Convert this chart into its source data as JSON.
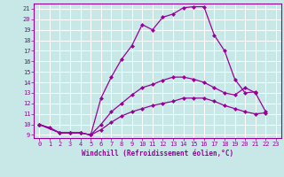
{
  "bg_color": "#c8e8e8",
  "grid_color": "#ffffff",
  "line_color": "#990099",
  "marker": "D",
  "marker_size": 2.0,
  "linewidth": 0.9,
  "xlabel": "Windchill (Refroidissement éolien,°C)",
  "xlim": [
    -0.5,
    23.5
  ],
  "ylim": [
    8.7,
    21.5
  ],
  "yticks": [
    9,
    10,
    11,
    12,
    13,
    14,
    15,
    16,
    17,
    18,
    19,
    20,
    21
  ],
  "xticks": [
    0,
    1,
    2,
    3,
    4,
    5,
    6,
    7,
    8,
    9,
    10,
    11,
    12,
    13,
    14,
    15,
    16,
    17,
    18,
    19,
    20,
    21,
    22,
    23
  ],
  "curves": [
    {
      "x": [
        0,
        1,
        2,
        3,
        4,
        5,
        6,
        7,
        8,
        9,
        10,
        11,
        12,
        13,
        14,
        15,
        16,
        17,
        18,
        19,
        20,
        21
      ],
      "y": [
        10.0,
        9.7,
        9.2,
        9.2,
        9.2,
        9.0,
        12.5,
        14.5,
        16.2,
        17.5,
        19.5,
        19.0,
        20.2,
        20.5,
        21.1,
        21.2,
        21.2,
        18.5,
        17.0,
        14.3,
        13.0,
        13.1
      ]
    },
    {
      "x": [
        0,
        2,
        3,
        4,
        5,
        6,
        7,
        8,
        9,
        10,
        11,
        12,
        13,
        14,
        15,
        16,
        17,
        18,
        19,
        20,
        21,
        22
      ],
      "y": [
        10.0,
        9.2,
        9.2,
        9.2,
        9.0,
        10.0,
        11.2,
        12.0,
        12.8,
        13.5,
        13.8,
        14.2,
        14.5,
        14.5,
        14.3,
        14.0,
        13.5,
        13.0,
        12.8,
        13.5,
        13.0,
        11.2
      ]
    },
    {
      "x": [
        0,
        2,
        3,
        4,
        5,
        6,
        7,
        8,
        9,
        10,
        11,
        12,
        13,
        14,
        15,
        16,
        17,
        18,
        19,
        20,
        21,
        22
      ],
      "y": [
        10.0,
        9.2,
        9.2,
        9.2,
        9.0,
        9.5,
        10.2,
        10.8,
        11.2,
        11.5,
        11.8,
        12.0,
        12.2,
        12.5,
        12.5,
        12.5,
        12.2,
        11.8,
        11.5,
        11.2,
        11.0,
        11.1
      ]
    }
  ]
}
